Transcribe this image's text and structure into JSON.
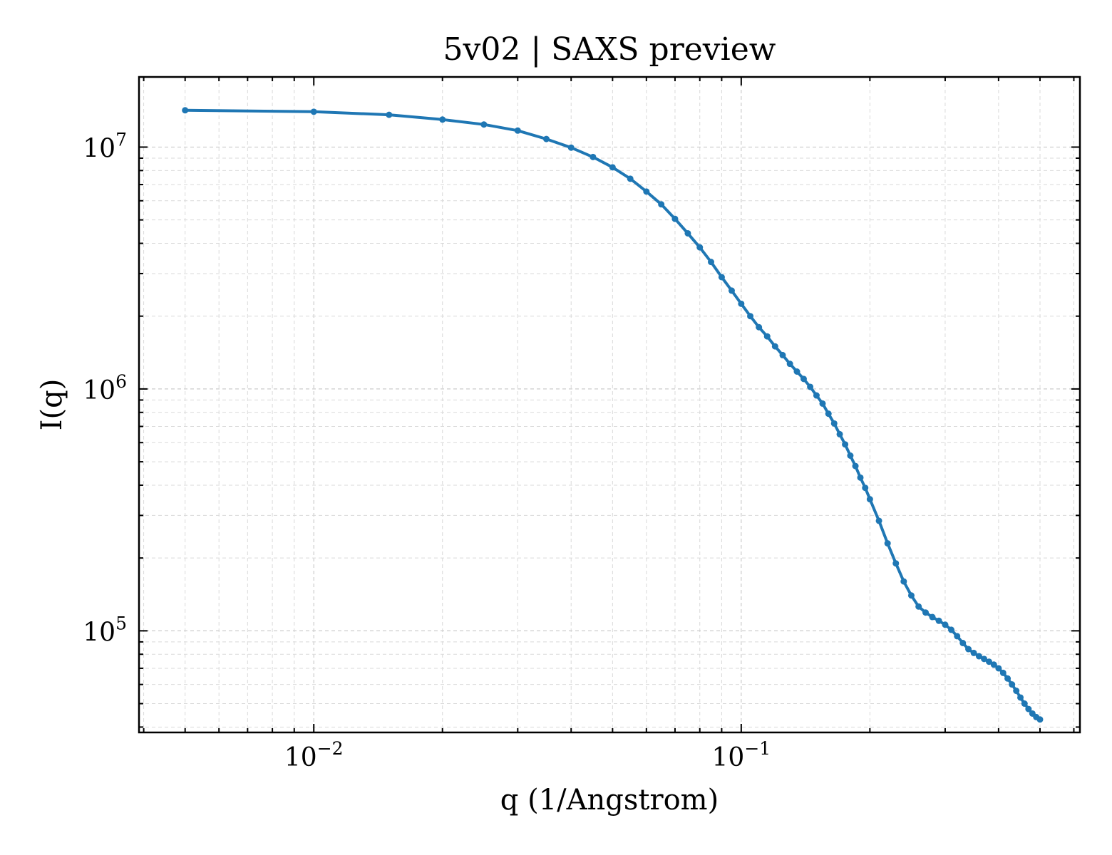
{
  "chart_data": {
    "type": "line",
    "title": "5v02 | SAXS preview",
    "xlabel": "q (1/Angstrom)",
    "ylabel": "I(q)",
    "xscale": "log",
    "yscale": "log",
    "xlim": [
      0.0039,
      0.62
    ],
    "ylim": [
      38000,
      19500000
    ],
    "x_ticks": [
      {
        "value": 0.01,
        "base": "10",
        "exp": "−2"
      },
      {
        "value": 0.1,
        "base": "10",
        "exp": "−1"
      }
    ],
    "y_ticks": [
      {
        "value": 100000,
        "base": "10",
        "exp": "5"
      },
      {
        "value": 1000000,
        "base": "10",
        "exp": "6"
      },
      {
        "value": 10000000,
        "base": "10",
        "exp": "7"
      }
    ],
    "grid": true,
    "color": "#1f77b4",
    "series": [
      {
        "x": [
          0.005,
          0.01,
          0.015,
          0.02,
          0.025,
          0.03,
          0.035,
          0.04,
          0.045,
          0.05,
          0.055,
          0.06,
          0.065,
          0.07,
          0.075,
          0.08,
          0.085,
          0.09,
          0.095,
          0.1,
          0.105,
          0.11,
          0.115,
          0.12,
          0.125,
          0.13,
          0.135,
          0.14,
          0.145,
          0.15,
          0.155,
          0.16,
          0.165,
          0.17,
          0.175,
          0.18,
          0.185,
          0.19,
          0.195,
          0.2,
          0.21,
          0.22,
          0.23,
          0.24,
          0.25,
          0.26,
          0.27,
          0.28,
          0.29,
          0.3,
          0.31,
          0.32,
          0.33,
          0.34,
          0.35,
          0.36,
          0.37,
          0.38,
          0.39,
          0.4,
          0.41,
          0.42,
          0.43,
          0.44,
          0.45,
          0.46,
          0.47,
          0.48,
          0.49,
          0.5
        ],
        "y": [
          14200000,
          14000000,
          13600000,
          13000000,
          12400000,
          11700000,
          10800000,
          9950000,
          9100000,
          8250000,
          7400000,
          6550000,
          5800000,
          5050000,
          4400000,
          3850000,
          3350000,
          2900000,
          2550000,
          2250000,
          2000000,
          1800000,
          1650000,
          1500000,
          1380000,
          1270000,
          1180000,
          1100000,
          1020000,
          940000,
          870000,
          790000,
          720000,
          650000,
          590000,
          530000,
          480000,
          430000,
          390000,
          350000,
          285000,
          230000,
          190000,
          160000,
          140000,
          126000,
          119000,
          114000,
          110000,
          106000,
          101000,
          95000,
          89000,
          84000,
          81000,
          78500,
          76500,
          74500,
          72500,
          70000,
          67000,
          63500,
          60000,
          56500,
          53000,
          50000,
          47500,
          45500,
          44000,
          43000
        ]
      }
    ]
  }
}
